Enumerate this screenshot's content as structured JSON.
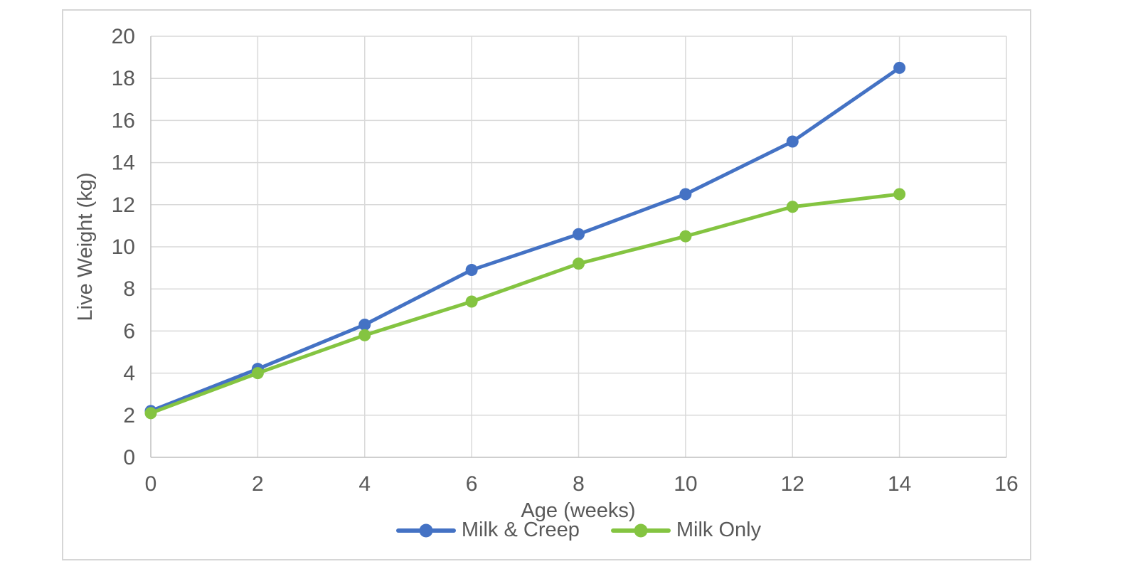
{
  "chart_data": {
    "type": "line",
    "title": "",
    "xlabel": "Age (weeks)",
    "ylabel": "Live Weight (kg)",
    "x": [
      0,
      2,
      4,
      6,
      8,
      10,
      12,
      14
    ],
    "series": [
      {
        "name": "Milk & Creep",
        "color": "#4472C4",
        "marker": "circle",
        "values": [
          2.2,
          4.2,
          6.3,
          8.9,
          10.6,
          12.5,
          15.0,
          18.5
        ]
      },
      {
        "name": "Milk Only",
        "color": "#84C441",
        "marker": "circle",
        "values": [
          2.1,
          4.0,
          5.8,
          7.4,
          9.2,
          10.5,
          11.9,
          12.5
        ]
      }
    ],
    "xlim": [
      0,
      16
    ],
    "ylim": [
      0,
      20
    ],
    "xticks": [
      0,
      2,
      4,
      6,
      8,
      10,
      12,
      14,
      16
    ],
    "yticks": [
      0,
      2,
      4,
      6,
      8,
      10,
      12,
      14,
      16,
      18,
      20
    ],
    "grid": true,
    "legend_position": "bottom-center",
    "colors": {
      "gridline": "#D9D9D9",
      "axis_line": "#BFBFBF",
      "tick_text": "#595959",
      "card_border": "#D6D6D6",
      "plot_background": "#FFFFFF"
    }
  }
}
